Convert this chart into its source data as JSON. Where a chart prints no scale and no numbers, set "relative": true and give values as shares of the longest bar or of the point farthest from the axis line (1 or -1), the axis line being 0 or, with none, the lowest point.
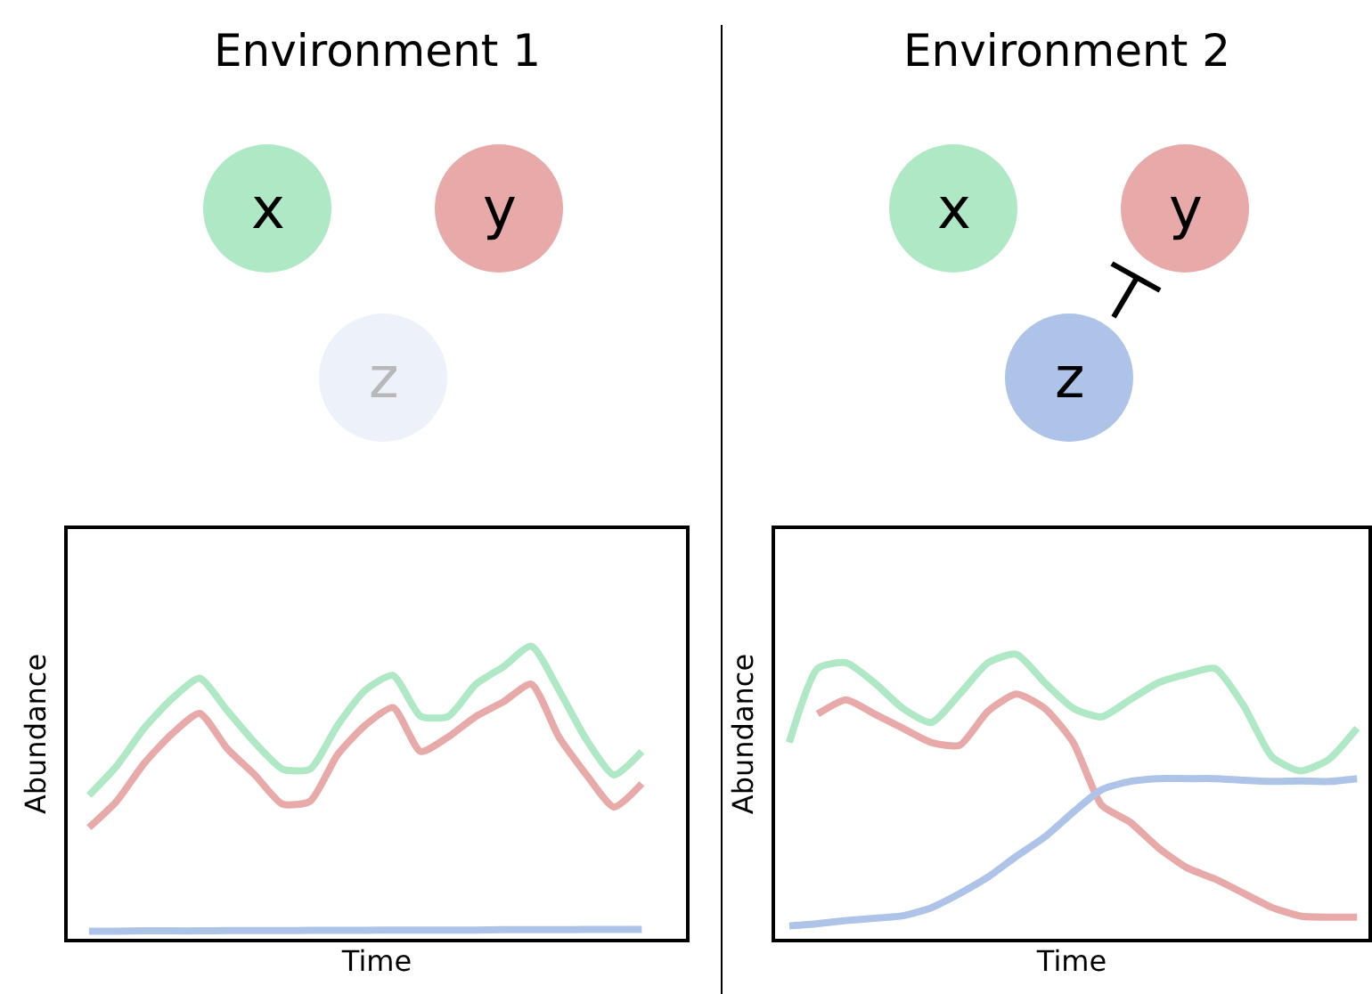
{
  "chart_data": [
    {
      "type": "line",
      "title": "Environment 1",
      "xlabel": "Time",
      "ylabel": "Abundance",
      "relative": true,
      "tick_labels": false,
      "marker": "none",
      "line_style": "solid",
      "annotations": [
        "x",
        "y",
        "z"
      ],
      "categories": [
        null,
        null,
        null,
        null,
        null,
        null,
        null,
        null,
        null,
        null,
        null,
        null,
        null,
        null,
        null,
        null,
        null,
        null,
        null,
        null,
        null
      ],
      "series": [
        {
          "color": "#aee8c4",
          "values": [
            0.49,
            0.59,
            0.72,
            0.82,
            0.89,
            0.78,
            0.67,
            0.58,
            0.58,
            0.73,
            0.85,
            0.9,
            0.76,
            0.76,
            0.87,
            0.93,
            1.0,
            0.85,
            0.68,
            0.56,
            0.64
          ]
        },
        {
          "color": "#e8aaa8",
          "values": [
            0.38,
            0.47,
            0.6,
            0.7,
            0.77,
            0.65,
            0.56,
            0.46,
            0.47,
            0.63,
            0.73,
            0.79,
            0.64,
            0.69,
            0.76,
            0.81,
            0.87,
            0.69,
            0.56,
            0.45,
            0.53
          ]
        },
        {
          "color": "#aec3e8",
          "values": [
            0.026,
            0.026,
            0.027,
            0.027,
            0.027,
            0.028,
            0.028,
            0.028,
            0.029,
            0.029,
            0.029,
            0.03,
            0.03,
            0.03,
            0.03,
            0.031,
            0.031,
            0.031,
            0.032,
            0.032,
            0.032
          ]
        }
      ]
    },
    {
      "type": "line",
      "title": "Environment 2",
      "xlabel": "Time",
      "ylabel": "Abundance",
      "relative": true,
      "tick_labels": false,
      "marker": "none",
      "line_style": "solid",
      "annotations": [
        "x",
        "y",
        "z"
      ],
      "categories": [
        null,
        null,
        null,
        null,
        null,
        null,
        null,
        null,
        null,
        null,
        null,
        null,
        null,
        null,
        null,
        null,
        null,
        null,
        null,
        null,
        null
      ],
      "series": [
        {
          "color": "#aee8c4",
          "values": [
            0.69,
            0.95,
            0.97,
            0.9,
            0.81,
            0.76,
            0.86,
            0.97,
            1.0,
            0.9,
            0.81,
            0.78,
            0.84,
            0.9,
            0.93,
            0.95,
            0.82,
            0.64,
            0.59,
            0.63,
            0.74
          ]
        },
        {
          "color": "#e8aaa8",
          "values": [
            null,
            0.79,
            0.84,
            0.79,
            0.74,
            0.69,
            0.68,
            0.8,
            0.86,
            0.81,
            0.69,
            0.47,
            0.41,
            0.32,
            0.25,
            0.21,
            0.16,
            0.11,
            0.08,
            0.076,
            0.076
          ]
        },
        {
          "color": "#aec3e8",
          "values": [
            0.045,
            0.053,
            0.064,
            0.072,
            0.081,
            0.109,
            0.159,
            0.217,
            0.29,
            0.358,
            0.445,
            0.524,
            0.553,
            0.563,
            0.563,
            0.563,
            0.557,
            0.553,
            0.555,
            0.553,
            0.563
          ]
        }
      ]
    }
  ]
}
